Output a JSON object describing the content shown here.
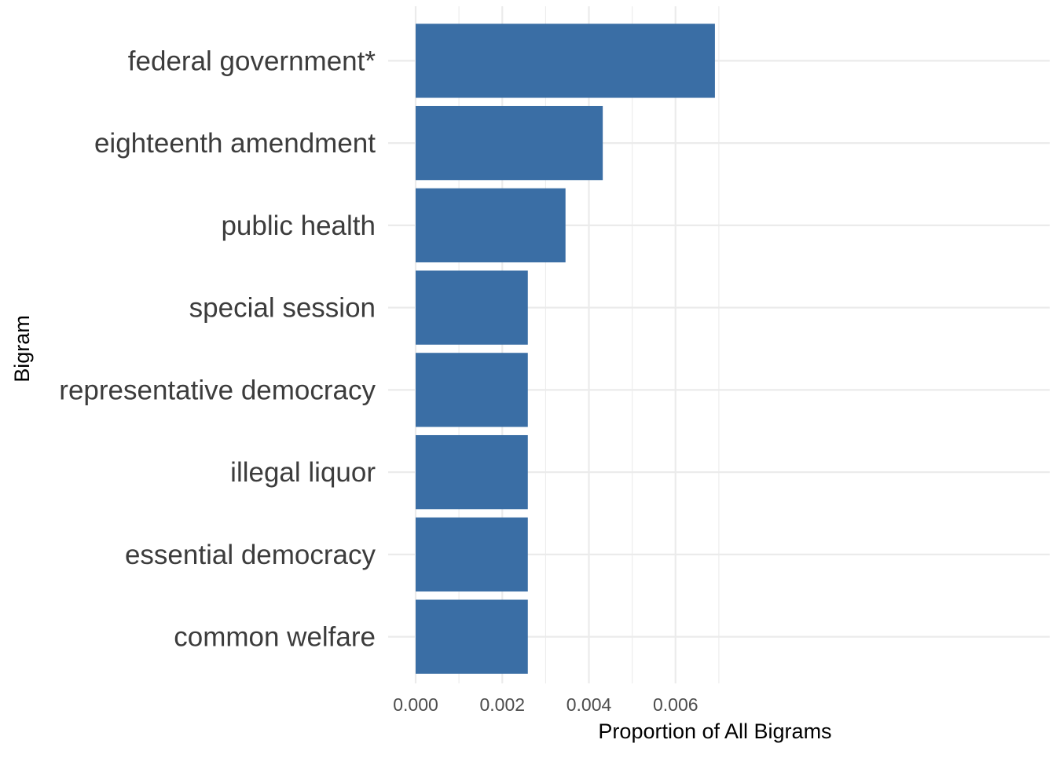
{
  "chart_data": {
    "type": "bar",
    "orientation": "horizontal",
    "categories": [
      "federal government*",
      "eighteenth amendment",
      "public health",
      "special session",
      "representative democracy",
      "illegal liquor",
      "essential democracy",
      "common welfare"
    ],
    "values": [
      0.00691,
      0.00432,
      0.00346,
      0.00259,
      0.00259,
      0.00259,
      0.00259,
      0.00259
    ],
    "title": "",
    "xlabel": "Proportion of All Bigrams",
    "ylabel": "Bigram",
    "xticks": [
      "0.000",
      "0.002",
      "0.004",
      "0.006"
    ],
    "xlim": [
      0,
      0.00691
    ],
    "grid": true,
    "legend": "none",
    "bar_color": "#3a6ea5"
  }
}
